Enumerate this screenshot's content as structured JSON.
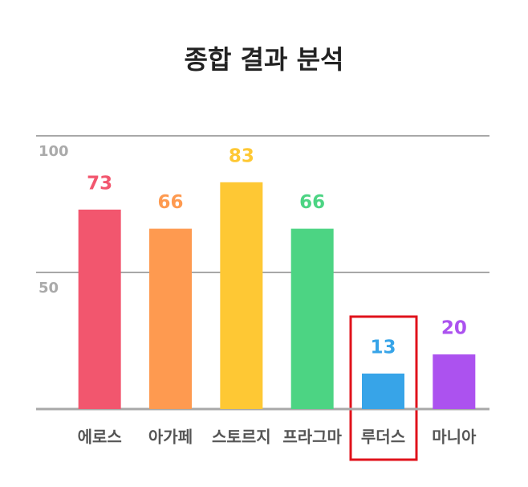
{
  "chart_data": {
    "type": "bar",
    "title": "종합 결과 분석",
    "categories": [
      "에로스",
      "아가페",
      "스토르지",
      "프라그마",
      "루더스",
      "마니아"
    ],
    "values": [
      73,
      66,
      83,
      66,
      13,
      20
    ],
    "colors": [
      "#f2566e",
      "#fe9a50",
      "#fec834",
      "#4cd483",
      "#37a4e8",
      "#ac52ef"
    ],
    "ylim": [
      0,
      100
    ],
    "yticks": [
      50,
      100
    ],
    "grid": true
  }
}
